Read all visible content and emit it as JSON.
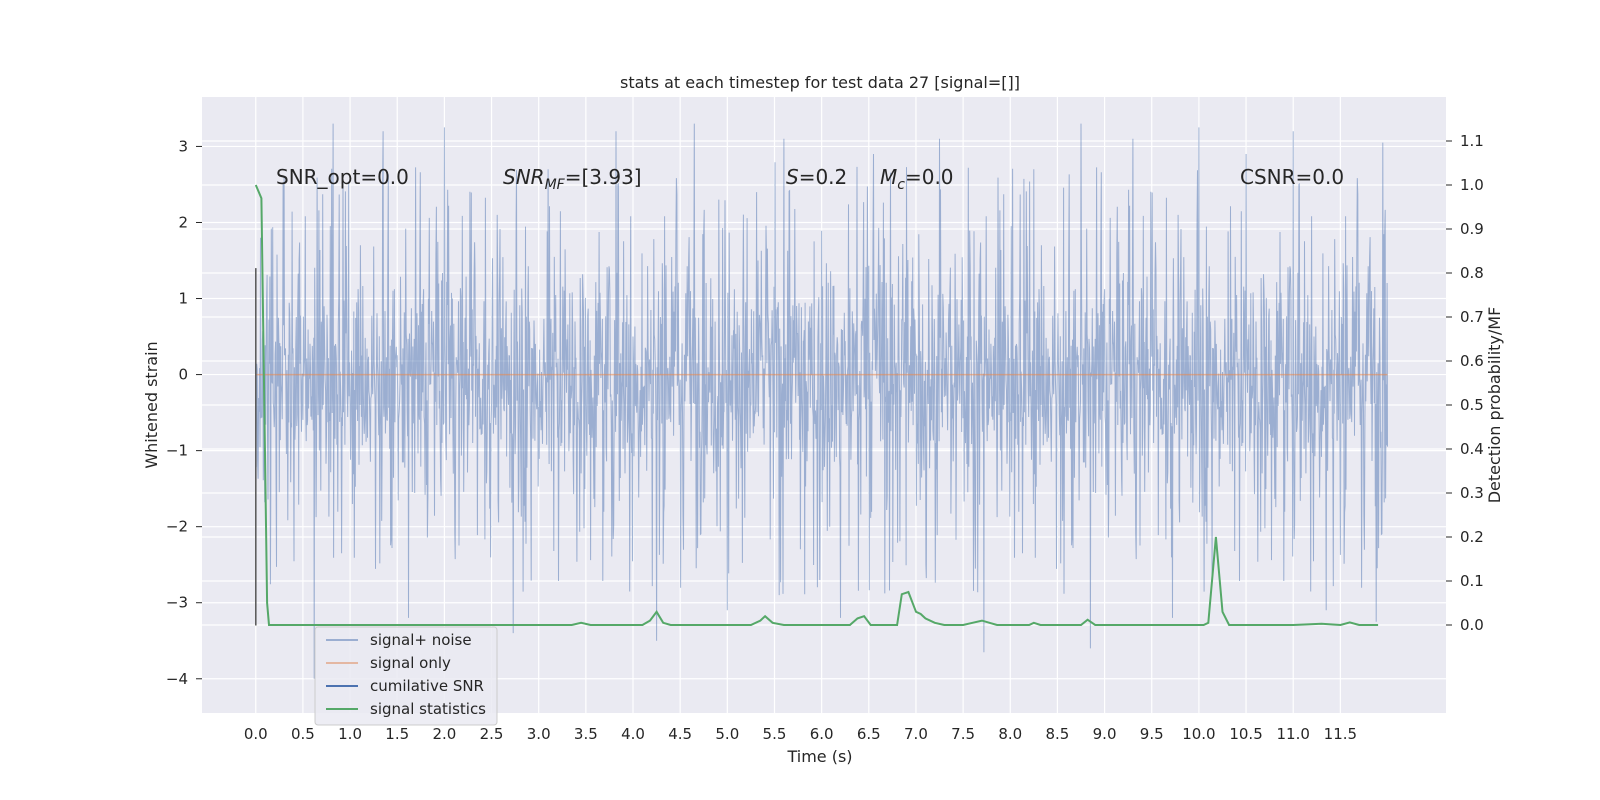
{
  "chart_data": {
    "type": "line",
    "title": "stats at each timestep for test data 27 [signal=[]]",
    "xlabel": "Time (s)",
    "ylabel": "Whitened strain",
    "y2label": "Detection probability/MF",
    "xlim": [
      -0.57,
      12.62
    ],
    "ylim": [
      -4.45,
      3.65
    ],
    "y2lim": [
      -0.2,
      1.2
    ],
    "x_ticks": [
      0.0,
      0.5,
      1.0,
      1.5,
      2.0,
      2.5,
      3.0,
      3.5,
      4.0,
      4.5,
      5.0,
      5.5,
      6.0,
      6.5,
      7.0,
      7.5,
      8.0,
      8.5,
      9.0,
      9.5,
      10.0,
      10.5,
      11.0,
      11.5
    ],
    "x_tick_labels": [
      "0.0",
      "0.5",
      "1.0",
      "1.5",
      "2.0",
      "2.5",
      "3.0",
      "3.5",
      "4.0",
      "4.5",
      "5.0",
      "5.5",
      "6.0",
      "6.5",
      "7.0",
      "7.5",
      "8.0",
      "8.5",
      "9.0",
      "9.5",
      "10.0",
      "10.5",
      "11.0",
      "11.5"
    ],
    "y_ticks": [
      3,
      2,
      1,
      0,
      -1,
      -2,
      -3,
      -4
    ],
    "y_tick_labels": [
      "3",
      "2",
      "1",
      "0",
      "−1",
      "−2",
      "−3",
      "−4"
    ],
    "y2_ticks": [
      1.1,
      1.0,
      0.9,
      0.8,
      0.7,
      0.6,
      0.5,
      0.4,
      0.3,
      0.2,
      0.1,
      0.0
    ],
    "y2_tick_labels": [
      "1.1",
      "1.0",
      "0.9",
      "0.8",
      "0.7",
      "0.6",
      "0.5",
      "0.4",
      "0.3",
      "0.2",
      "0.1",
      "0.0"
    ],
    "grid": true,
    "legend_placement": "lower-left",
    "colors": {
      "plot_background": "#eaeaf2",
      "grid": "#ffffff",
      "noise": "#4c72b0",
      "signal": "#dd8452",
      "cumulative": "#4c72b0",
      "statistics": "#55a868"
    },
    "annotations": {
      "snr_opt": "SNR_opt=0.0",
      "snr_mf_base": "SNR",
      "snr_mf_sub": "MF",
      "snr_mf_value": "=[3.93]",
      "s_base": "S",
      "s_value": "=0.2",
      "mc_base": "M",
      "mc_sub": "c",
      "mc_value": "=0.0",
      "csnr": "CSNR=0.0"
    },
    "series": [
      {
        "name": "signal+ noise",
        "axis": "left",
        "style": "noise",
        "x_range": [
          0.0,
          12.0
        ],
        "typical_band": [
          -1.5,
          1.4
        ],
        "peaks": [
          {
            "x": 0.05,
            "y": 1.8
          },
          {
            "x": 0.3,
            "y": 2.6
          },
          {
            "x": 0.62,
            "y": -4.0
          },
          {
            "x": 0.82,
            "y": 3.3
          },
          {
            "x": 1.35,
            "y": 3.2
          },
          {
            "x": 1.62,
            "y": -3.2
          },
          {
            "x": 2.0,
            "y": 3.25
          },
          {
            "x": 2.73,
            "y": -3.4
          },
          {
            "x": 3.1,
            "y": 2.7
          },
          {
            "x": 3.82,
            "y": 3.2
          },
          {
            "x": 4.25,
            "y": -3.5
          },
          {
            "x": 4.65,
            "y": 3.3
          },
          {
            "x": 5.0,
            "y": -3.1
          },
          {
            "x": 5.6,
            "y": 3.1
          },
          {
            "x": 6.2,
            "y": -3.2
          },
          {
            "x": 6.55,
            "y": 2.9
          },
          {
            "x": 7.25,
            "y": 3.1
          },
          {
            "x": 7.72,
            "y": -3.65
          },
          {
            "x": 8.25,
            "y": 2.7
          },
          {
            "x": 8.75,
            "y": 3.3
          },
          {
            "x": 8.85,
            "y": -3.6
          },
          {
            "x": 9.3,
            "y": 3.1
          },
          {
            "x": 9.72,
            "y": -3.2
          },
          {
            "x": 10.0,
            "y": 3.25
          },
          {
            "x": 10.5,
            "y": 2.9
          },
          {
            "x": 11.0,
            "y": 3.2
          },
          {
            "x": 11.35,
            "y": -3.1
          },
          {
            "x": 11.88,
            "y": -3.25
          },
          {
            "x": 11.95,
            "y": 3.05
          }
        ]
      },
      {
        "name": "signal only",
        "axis": "left",
        "style": "signal",
        "x": [
          0.0,
          12.0
        ],
        "y": [
          0.0,
          0.0
        ]
      },
      {
        "name": "cumilative SNR",
        "axis": "left",
        "style": "cumulative",
        "x": [
          0.0,
          0.0
        ],
        "y": [
          -3.3,
          1.4
        ]
      },
      {
        "name": "signal statistics",
        "axis": "right",
        "style": "statistics",
        "x": [
          0.0,
          0.06,
          0.12,
          0.14,
          0.5,
          1.0,
          2.0,
          3.0,
          3.35,
          3.45,
          3.55,
          4.1,
          4.18,
          4.25,
          4.32,
          4.4,
          5.25,
          5.35,
          5.4,
          5.48,
          5.6,
          6.3,
          6.38,
          6.45,
          6.52,
          6.8,
          6.85,
          6.92,
          7.0,
          7.05,
          7.1,
          7.2,
          7.3,
          7.5,
          7.6,
          7.7,
          7.78,
          7.86,
          8.2,
          8.25,
          8.32,
          8.75,
          8.82,
          8.9,
          9.5,
          10.05,
          10.1,
          10.18,
          10.25,
          10.32,
          10.5,
          11.0,
          11.3,
          11.5,
          11.6,
          11.7,
          11.9
        ],
        "y": [
          1.0,
          0.97,
          0.05,
          0.0,
          0.0,
          0.0,
          0.0,
          0.0,
          0.0,
          0.005,
          0.0,
          0.0,
          0.01,
          0.03,
          0.005,
          0.0,
          0.0,
          0.01,
          0.02,
          0.005,
          0.0,
          0.0,
          0.015,
          0.02,
          0.0,
          0.0,
          0.07,
          0.075,
          0.03,
          0.025,
          0.015,
          0.005,
          0.0,
          0.0,
          0.005,
          0.01,
          0.005,
          0.0,
          0.0,
          0.005,
          0.0,
          0.0,
          0.012,
          0.0,
          0.0,
          0.0,
          0.005,
          0.2,
          0.03,
          0.0,
          0.0,
          0.0,
          0.003,
          0.0,
          0.006,
          0.0,
          0.0
        ]
      }
    ]
  }
}
